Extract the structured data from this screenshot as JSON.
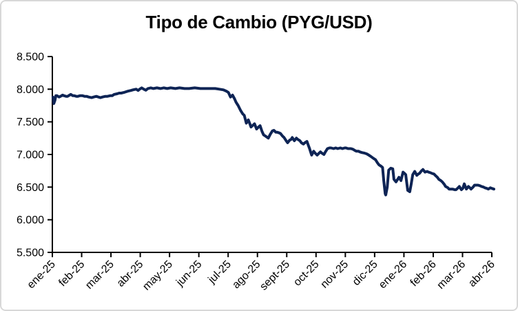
{
  "chart": {
    "title": "Tipo de Cambio (PYG/USD)"
  },
  "chart_data": {
    "type": "line",
    "title": "Tipo de Cambio (PYG/USD)",
    "xlabel": "",
    "ylabel": "",
    "legend": "none",
    "grid": false,
    "line_color": "#0e2455",
    "axis_color": "#000000",
    "categories": [
      "ene-25",
      "feb-25",
      "mar-25",
      "abr-25",
      "may-25",
      "jun-25",
      "jul-25",
      "ago-25",
      "sept-25",
      "oct-25",
      "nov-25",
      "dic-25",
      "ene-26",
      "feb-26",
      "mar-26",
      "abr-26"
    ],
    "y_ticks": [
      5500,
      6000,
      6500,
      7000,
      7500,
      8000,
      8500
    ],
    "y_tick_labels": [
      "5.500",
      "6.000",
      "6.500",
      "7.000",
      "7.500",
      "8.000",
      "8.500"
    ],
    "ylim": [
      5500,
      8500
    ],
    "xlim_months": [
      0,
      15
    ],
    "series": [
      {
        "name": "PYG/USD",
        "points": [
          [
            0.02,
            7880
          ],
          [
            0.05,
            7780
          ],
          [
            0.09,
            7830
          ],
          [
            0.12,
            7900
          ],
          [
            0.16,
            7900
          ],
          [
            0.23,
            7880
          ],
          [
            0.28,
            7890
          ],
          [
            0.35,
            7910
          ],
          [
            0.4,
            7900
          ],
          [
            0.47,
            7890
          ],
          [
            0.52,
            7890
          ],
          [
            0.59,
            7910
          ],
          [
            0.63,
            7920
          ],
          [
            0.7,
            7900
          ],
          [
            0.75,
            7900
          ],
          [
            0.82,
            7890
          ],
          [
            0.87,
            7890
          ],
          [
            0.94,
            7900
          ],
          [
            1.03,
            7900
          ],
          [
            1.1,
            7890
          ],
          [
            1.17,
            7890
          ],
          [
            1.24,
            7880
          ],
          [
            1.34,
            7870
          ],
          [
            1.41,
            7880
          ],
          [
            1.5,
            7890
          ],
          [
            1.57,
            7880
          ],
          [
            1.64,
            7870
          ],
          [
            1.71,
            7880
          ],
          [
            1.81,
            7890
          ],
          [
            1.88,
            7890
          ],
          [
            1.97,
            7900
          ],
          [
            2.04,
            7900
          ],
          [
            2.11,
            7920
          ],
          [
            2.21,
            7930
          ],
          [
            2.28,
            7940
          ],
          [
            2.35,
            7940
          ],
          [
            2.44,
            7950
          ],
          [
            2.51,
            7960
          ],
          [
            2.58,
            7970
          ],
          [
            2.68,
            7980
          ],
          [
            2.75,
            7990
          ],
          [
            2.86,
            8000
          ],
          [
            2.93,
            7980
          ],
          [
            2.98,
            8000
          ],
          [
            3.05,
            8020
          ],
          [
            3.12,
            8000
          ],
          [
            3.19,
            7985
          ],
          [
            3.26,
            8010
          ],
          [
            3.36,
            8020
          ],
          [
            3.45,
            8010
          ],
          [
            3.57,
            8020
          ],
          [
            3.69,
            8010
          ],
          [
            3.8,
            8020
          ],
          [
            3.92,
            8010
          ],
          [
            4.04,
            8020
          ],
          [
            4.2,
            8010
          ],
          [
            4.34,
            8020
          ],
          [
            4.51,
            8010
          ],
          [
            4.67,
            8010
          ],
          [
            4.86,
            8020
          ],
          [
            5.05,
            8010
          ],
          [
            5.21,
            8010
          ],
          [
            5.38,
            8010
          ],
          [
            5.56,
            8010
          ],
          [
            5.7,
            8000
          ],
          [
            5.84,
            7990
          ],
          [
            5.94,
            7970
          ],
          [
            6.01,
            7950
          ],
          [
            6.08,
            7880
          ],
          [
            6.15,
            7910
          ],
          [
            6.22,
            7850
          ],
          [
            6.27,
            7800
          ],
          [
            6.34,
            7750
          ],
          [
            6.43,
            7670
          ],
          [
            6.5,
            7620
          ],
          [
            6.55,
            7600
          ],
          [
            6.62,
            7480
          ],
          [
            6.69,
            7530
          ],
          [
            6.74,
            7470
          ],
          [
            6.78,
            7420
          ],
          [
            6.85,
            7450
          ],
          [
            6.9,
            7470
          ],
          [
            6.97,
            7390
          ],
          [
            7.04,
            7420
          ],
          [
            7.09,
            7440
          ],
          [
            7.16,
            7350
          ],
          [
            7.21,
            7300
          ],
          [
            7.28,
            7280
          ],
          [
            7.37,
            7250
          ],
          [
            7.44,
            7310
          ],
          [
            7.51,
            7360
          ],
          [
            7.56,
            7370
          ],
          [
            7.63,
            7340
          ],
          [
            7.68,
            7340
          ],
          [
            7.75,
            7330
          ],
          [
            7.79,
            7320
          ],
          [
            7.86,
            7280
          ],
          [
            7.91,
            7260
          ],
          [
            7.98,
            7210
          ],
          [
            8.03,
            7180
          ],
          [
            8.1,
            7220
          ],
          [
            8.15,
            7230
          ],
          [
            8.19,
            7260
          ],
          [
            8.26,
            7210
          ],
          [
            8.33,
            7250
          ],
          [
            8.38,
            7230
          ],
          [
            8.45,
            7210
          ],
          [
            8.5,
            7180
          ],
          [
            8.57,
            7160
          ],
          [
            8.62,
            7180
          ],
          [
            8.69,
            7200
          ],
          [
            8.73,
            7150
          ],
          [
            8.78,
            7090
          ],
          [
            8.85,
            6990
          ],
          [
            8.92,
            7050
          ],
          [
            8.97,
            7020
          ],
          [
            9.04,
            6990
          ],
          [
            9.08,
            7010
          ],
          [
            9.15,
            7040
          ],
          [
            9.2,
            7020
          ],
          [
            9.27,
            7000
          ],
          [
            9.32,
            7040
          ],
          [
            9.39,
            7090
          ],
          [
            9.46,
            7100
          ],
          [
            9.51,
            7100
          ],
          [
            9.6,
            7090
          ],
          [
            9.67,
            7100
          ],
          [
            9.74,
            7090
          ],
          [
            9.83,
            7100
          ],
          [
            9.9,
            7090
          ],
          [
            9.98,
            7100
          ],
          [
            10.02,
            7100
          ],
          [
            10.09,
            7090
          ],
          [
            10.19,
            7090
          ],
          [
            10.26,
            7080
          ],
          [
            10.33,
            7060
          ],
          [
            10.38,
            7050
          ],
          [
            10.45,
            7050
          ],
          [
            10.49,
            7040
          ],
          [
            10.56,
            7030
          ],
          [
            10.66,
            7020
          ],
          [
            10.73,
            7010
          ],
          [
            10.8,
            6990
          ],
          [
            10.87,
            6970
          ],
          [
            10.96,
            6940
          ],
          [
            11.03,
            6920
          ],
          [
            11.1,
            6870
          ],
          [
            11.15,
            6840
          ],
          [
            11.22,
            6820
          ],
          [
            11.27,
            6800
          ],
          [
            11.31,
            6600
          ],
          [
            11.36,
            6400
          ],
          [
            11.38,
            6380
          ],
          [
            11.43,
            6500
          ],
          [
            11.48,
            6760
          ],
          [
            11.55,
            6790
          ],
          [
            11.62,
            6780
          ],
          [
            11.66,
            6620
          ],
          [
            11.73,
            6580
          ],
          [
            11.83,
            6650
          ],
          [
            11.9,
            6600
          ],
          [
            11.97,
            6730
          ],
          [
            12.02,
            6710
          ],
          [
            12.06,
            6690
          ],
          [
            12.13,
            6450
          ],
          [
            12.2,
            6430
          ],
          [
            12.25,
            6550
          ],
          [
            12.3,
            6690
          ],
          [
            12.37,
            6740
          ],
          [
            12.44,
            6680
          ],
          [
            12.49,
            6700
          ],
          [
            12.53,
            6710
          ],
          [
            12.6,
            6750
          ],
          [
            12.65,
            6770
          ],
          [
            12.72,
            6730
          ],
          [
            12.79,
            6740
          ],
          [
            12.84,
            6730
          ],
          [
            12.91,
            6720
          ],
          [
            12.96,
            6710
          ],
          [
            13.03,
            6700
          ],
          [
            13.07,
            6680
          ],
          [
            13.14,
            6650
          ],
          [
            13.19,
            6620
          ],
          [
            13.26,
            6600
          ],
          [
            13.31,
            6580
          ],
          [
            13.38,
            6540
          ],
          [
            13.42,
            6510
          ],
          [
            13.5,
            6490
          ],
          [
            13.54,
            6470
          ],
          [
            13.61,
            6470
          ],
          [
            13.66,
            6470
          ],
          [
            13.73,
            6460
          ],
          [
            13.78,
            6460
          ],
          [
            13.85,
            6490
          ],
          [
            13.89,
            6510
          ],
          [
            13.96,
            6460
          ],
          [
            14.01,
            6480
          ],
          [
            14.06,
            6550
          ],
          [
            14.13,
            6470
          ],
          [
            14.2,
            6510
          ],
          [
            14.25,
            6490
          ],
          [
            14.29,
            6470
          ],
          [
            14.36,
            6500
          ],
          [
            14.41,
            6530
          ],
          [
            14.48,
            6530
          ],
          [
            14.53,
            6530
          ],
          [
            14.6,
            6520
          ],
          [
            14.65,
            6510
          ],
          [
            14.72,
            6500
          ],
          [
            14.76,
            6490
          ],
          [
            14.83,
            6480
          ],
          [
            14.88,
            6470
          ],
          [
            14.95,
            6490
          ],
          [
            15.0,
            6480
          ],
          [
            15.07,
            6470
          ]
        ]
      }
    ]
  }
}
